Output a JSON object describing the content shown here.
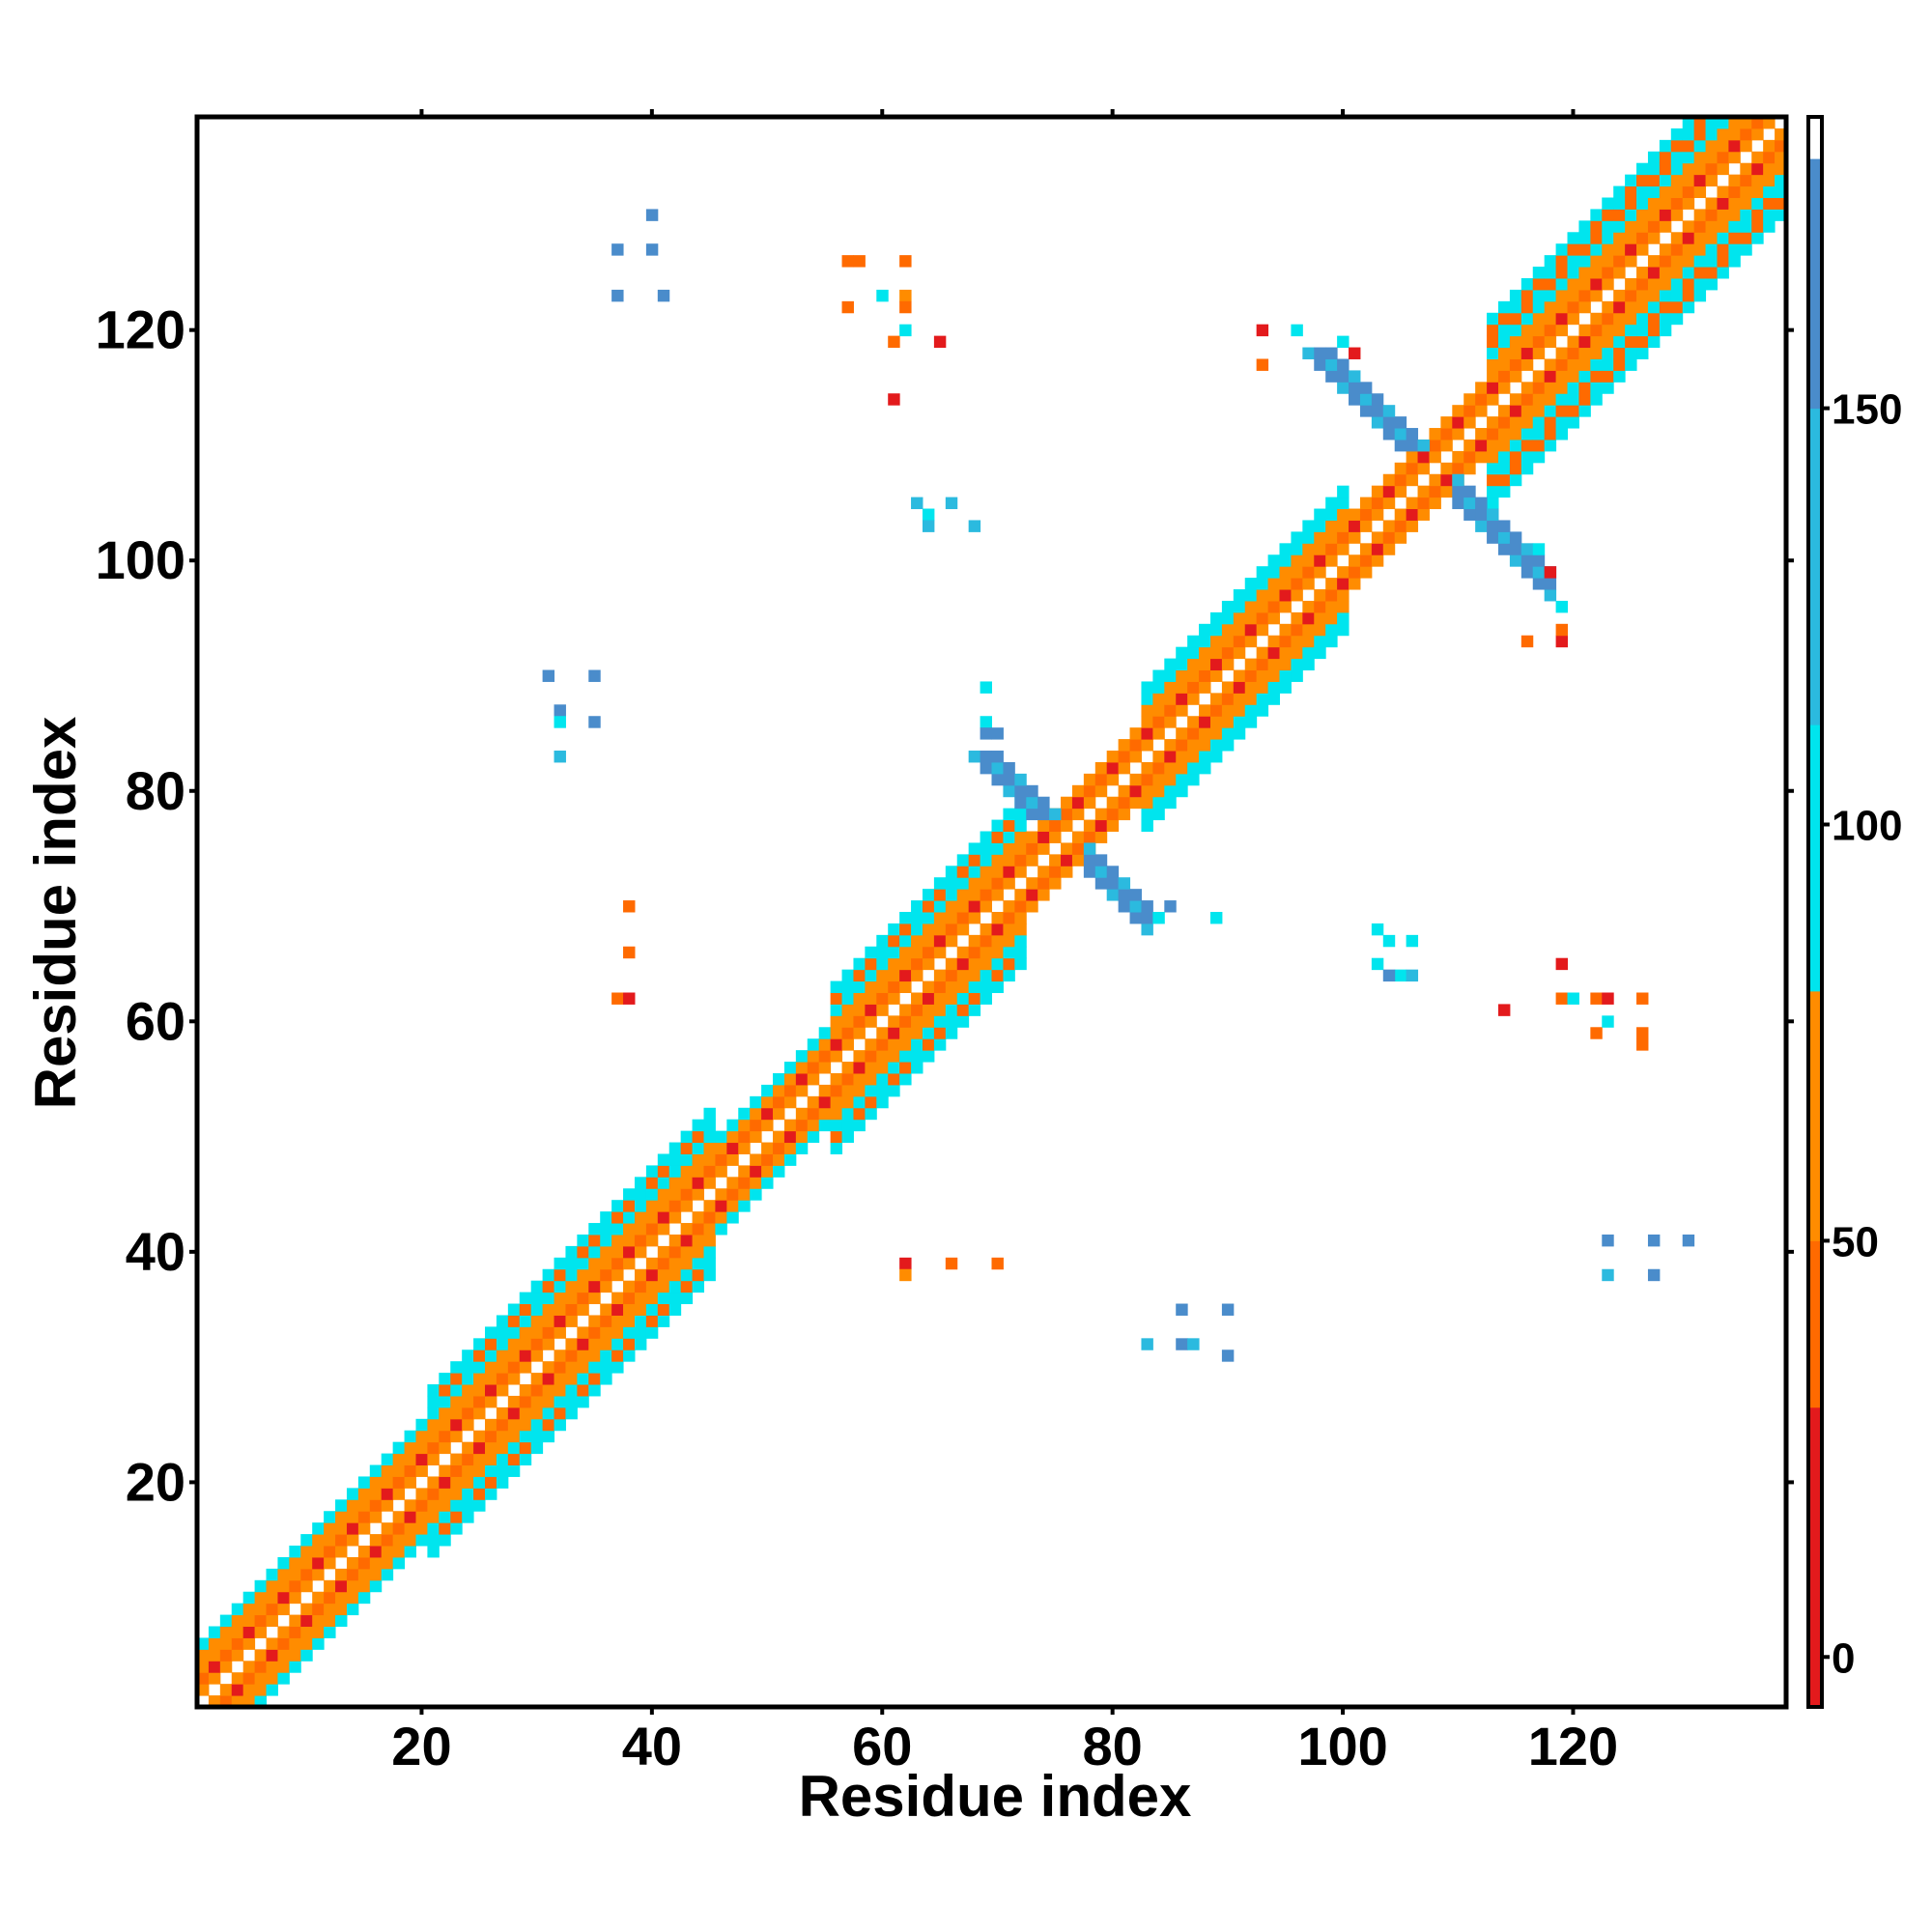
{
  "chart_data": {
    "type": "heatmap",
    "title": "",
    "xlabel": "Residue index",
    "ylabel": "Residue index",
    "xlim": [
      1,
      138
    ],
    "ylim": [
      1,
      138
    ],
    "x_ticks": [
      20,
      40,
      60,
      80,
      100,
      120
    ],
    "y_ticks": [
      20,
      40,
      60,
      80,
      100,
      120
    ],
    "grid": false,
    "legend": "colorbar-right",
    "colorbar": {
      "ticks": [
        0,
        50,
        100,
        150
      ],
      "range": [
        -6,
        180
      ],
      "bands": [
        {
          "from": -6,
          "to": 30,
          "color": "#e31a1c"
        },
        {
          "from": 30,
          "to": 50,
          "color": "#ff6a00"
        },
        {
          "from": 50,
          "to": 80,
          "color": "#ff8c00"
        },
        {
          "from": 80,
          "to": 112,
          "color": "#00e5ee"
        },
        {
          "from": 112,
          "to": 150,
          "color": "#2bbadf"
        },
        {
          "from": 150,
          "to": 180,
          "color": "#4a8ccb"
        },
        {
          "from": 180,
          "to": 185,
          "color": "#ffffff"
        }
      ]
    },
    "diagonal_band": {
      "description": "contacts along the main diagonal, |i-j| <= band width",
      "segments": [
        {
          "start": 1,
          "end": 20,
          "width": 5
        },
        {
          "start": 20,
          "end": 45,
          "width": 7
        },
        {
          "start": 45,
          "end": 55,
          "width": 4
        },
        {
          "start": 55,
          "end": 72,
          "width": 7
        },
        {
          "start": 72,
          "end": 82,
          "width": 3
        },
        {
          "start": 82,
          "end": 100,
          "width": 6
        },
        {
          "start": 100,
          "end": 112,
          "width": 3
        },
        {
          "start": 112,
          "end": 138,
          "width": 8
        }
      ]
    },
    "anti_diagonal_arms": [
      {
        "center": [
          76,
          76
        ],
        "length": 7,
        "value": 150
      },
      {
        "center": [
          108,
          108
        ],
        "length": 10,
        "value": 160
      }
    ],
    "off_diagonal_points": [
      [
        40,
        130,
        160
      ],
      [
        37,
        127,
        160
      ],
      [
        40,
        127,
        160
      ],
      [
        37,
        123,
        160
      ],
      [
        41,
        123,
        160
      ],
      [
        57,
        126,
        40
      ],
      [
        58,
        126,
        40
      ],
      [
        62,
        126,
        40
      ],
      [
        57,
        122,
        40
      ],
      [
        60,
        123,
        100
      ],
      [
        62,
        123,
        60
      ],
      [
        62,
        122,
        30
      ],
      [
        61,
        119,
        40
      ],
      [
        65,
        119,
        20
      ],
      [
        61,
        114,
        20
      ],
      [
        62,
        120,
        100
      ],
      [
        63,
        105,
        120
      ],
      [
        64,
        104,
        100
      ],
      [
        66,
        105,
        120
      ],
      [
        64,
        103,
        120
      ],
      [
        68,
        103,
        120
      ],
      [
        93,
        120,
        20
      ],
      [
        96,
        120,
        100
      ],
      [
        93,
        117,
        40
      ],
      [
        100,
        119,
        100
      ],
      [
        101,
        118,
        20
      ],
      [
        117,
        101,
        100
      ],
      [
        118,
        99,
        20
      ],
      [
        119,
        96,
        100
      ],
      [
        116,
        93,
        40
      ],
      [
        119,
        93,
        20
      ],
      [
        119,
        94,
        40
      ],
      [
        31,
        90,
        160
      ],
      [
        35,
        90,
        160
      ],
      [
        32,
        87,
        160
      ],
      [
        32,
        86,
        100
      ],
      [
        35,
        86,
        160
      ],
      [
        32,
        83,
        120
      ],
      [
        69,
        89,
        100
      ],
      [
        69,
        86,
        100
      ],
      [
        70,
        85,
        150
      ],
      [
        69,
        85,
        150
      ],
      [
        38,
        70,
        40
      ],
      [
        38,
        66,
        40
      ],
      [
        37,
        62,
        40
      ],
      [
        38,
        62,
        20
      ],
      [
        85,
        70,
        160
      ],
      [
        84,
        69,
        100
      ],
      [
        89,
        69,
        100
      ],
      [
        103,
        68,
        100
      ],
      [
        104,
        67,
        100
      ],
      [
        106,
        67,
        100
      ],
      [
        103,
        65,
        100
      ],
      [
        105,
        64,
        100
      ],
      [
        104,
        64,
        150
      ],
      [
        106,
        64,
        120
      ],
      [
        119,
        65,
        20
      ],
      [
        114,
        61,
        20
      ],
      [
        119,
        62,
        40
      ],
      [
        122,
        62,
        40
      ],
      [
        123,
        62,
        20
      ],
      [
        126,
        62,
        40
      ],
      [
        120,
        62,
        100
      ],
      [
        122,
        59,
        40
      ],
      [
        123,
        60,
        100
      ],
      [
        126,
        59,
        40
      ],
      [
        126,
        58,
        40
      ],
      [
        62,
        39,
        20
      ],
      [
        62,
        38,
        60
      ],
      [
        66,
        39,
        40
      ],
      [
        70,
        39,
        40
      ],
      [
        123,
        41,
        160
      ],
      [
        127,
        41,
        150
      ],
      [
        130,
        41,
        160
      ],
      [
        123,
        38,
        120
      ],
      [
        127,
        38,
        160
      ],
      [
        86,
        35,
        160
      ],
      [
        90,
        35,
        160
      ],
      [
        83,
        32,
        120
      ],
      [
        86,
        32,
        160
      ],
      [
        87,
        32,
        120
      ],
      [
        90,
        31,
        160
      ]
    ]
  }
}
